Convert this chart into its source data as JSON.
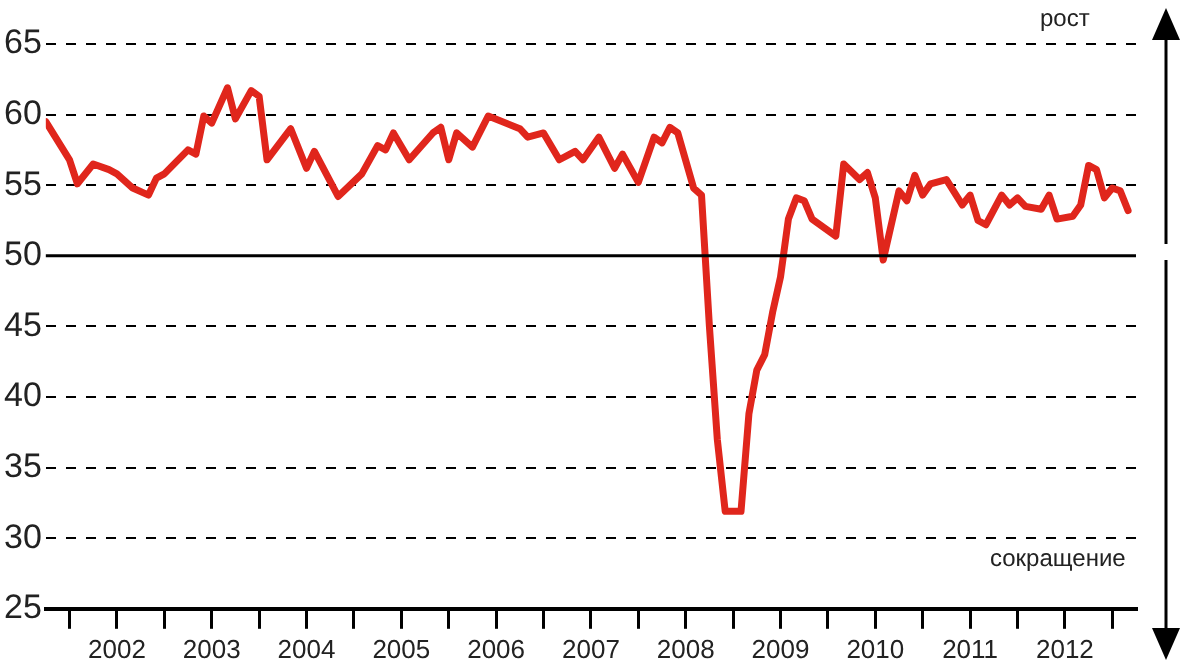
{
  "chart_data": {
    "type": "line",
    "x": [
      "2001-10",
      "2001-12",
      "2002-01",
      "2002-02",
      "2002-04",
      "2002-06",
      "2002-07",
      "2002-09",
      "2002-11",
      "2002-12",
      "2003-01",
      "2003-04",
      "2003-05",
      "2003-06",
      "2003-07",
      "2003-09",
      "2003-10",
      "2003-12",
      "2004-01",
      "2004-02",
      "2004-05",
      "2004-07",
      "2004-08",
      "2004-11",
      "2005-02",
      "2005-04",
      "2005-05",
      "2005-06",
      "2005-08",
      "2005-11",
      "2005-12",
      "2006-01",
      "2006-02",
      "2006-04",
      "2006-06",
      "2006-10",
      "2006-11",
      "2007-01",
      "2007-03",
      "2007-05",
      "2007-06",
      "2007-08",
      "2007-10",
      "2007-11",
      "2008-01",
      "2008-03",
      "2008-04",
      "2008-05",
      "2008-06",
      "2008-08",
      "2008-09",
      "2008-10",
      "2008-11",
      "2008-12",
      "2009-02",
      "2009-03",
      "2009-04",
      "2009-05",
      "2009-06",
      "2009-07",
      "2009-08",
      "2009-09",
      "2009-10",
      "2009-11",
      "2010-02",
      "2010-03",
      "2010-05",
      "2010-06",
      "2010-07",
      "2010-08",
      "2010-10",
      "2010-11",
      "2010-12",
      "2011-01",
      "2011-02",
      "2011-04",
      "2011-06",
      "2011-07",
      "2011-08",
      "2011-09",
      "2011-11",
      "2011-12",
      "2012-01",
      "2012-02",
      "2012-04",
      "2012-05",
      "2012-06",
      "2012-08",
      "2012-09",
      "2012-10",
      "2012-11",
      "2012-12",
      "2013-01",
      "2013-02",
      "2013-03"
    ],
    "series": [
      {
        "color": "#e0261c",
        "values": [
          59.5,
          57.7,
          56.8,
          55.1,
          56.5,
          56.1,
          55.8,
          54.8,
          54.3,
          55.5,
          55.8,
          57.5,
          57.2,
          59.9,
          59.4,
          61.9,
          59.7,
          61.7,
          61.3,
          56.8,
          59,
          56.2,
          57.4,
          54.2,
          55.8,
          57.8,
          57.5,
          58.7,
          56.8,
          58.7,
          59.1,
          56.8,
          58.7,
          57.7,
          59.9,
          59,
          58.4,
          58.7,
          56.8,
          57.4,
          56.8,
          58.4,
          56.2,
          57.2,
          55.2,
          58.4,
          58,
          59.1,
          58.7,
          54.8,
          54.3,
          45,
          37,
          31.9,
          31.9,
          38.8,
          41.9,
          43,
          46,
          48.5,
          52.6,
          54.1,
          53.9,
          52.6,
          51.4,
          56.5,
          55.4,
          55.9,
          54.1,
          49.7,
          54.6,
          53.9,
          55.7,
          54.3,
          55.1,
          55.4,
          53.6,
          54.3,
          52.5,
          52.2,
          54.3,
          53.6,
          54.1,
          53.5,
          53.3,
          54.3,
          52.6,
          52.8,
          53.6,
          56.4,
          56.1,
          54.1,
          54.8,
          54.6,
          53.2
        ]
      }
    ],
    "xlim": [
      "2001-10",
      "2013-04"
    ],
    "xticks": [
      {
        "value": "2002-01",
        "label": null
      },
      {
        "value": "2002-07",
        "label": "2002"
      },
      {
        "value": "2003-01",
        "label": null
      },
      {
        "value": "2003-07",
        "label": "2003"
      },
      {
        "value": "2004-01",
        "label": null
      },
      {
        "value": "2004-07",
        "label": "2004"
      },
      {
        "value": "2005-01",
        "label": null
      },
      {
        "value": "2005-07",
        "label": "2005"
      },
      {
        "value": "2006-01",
        "label": null
      },
      {
        "value": "2006-07",
        "label": "2006"
      },
      {
        "value": "2007-01",
        "label": null
      },
      {
        "value": "2007-07",
        "label": "2007"
      },
      {
        "value": "2008-01",
        "label": null
      },
      {
        "value": "2008-07",
        "label": "2008"
      },
      {
        "value": "2009-01",
        "label": null
      },
      {
        "value": "2009-07",
        "label": "2009"
      },
      {
        "value": "2010-01",
        "label": null
      },
      {
        "value": "2010-07",
        "label": "2010"
      },
      {
        "value": "2011-01",
        "label": null
      },
      {
        "value": "2011-07",
        "label": "2011"
      },
      {
        "value": "2012-01",
        "label": null
      },
      {
        "value": "2012-07",
        "label": "2012"
      },
      {
        "value": "2013-01",
        "label": null
      }
    ],
    "ylim": [
      25,
      65
    ],
    "yticks": [
      25,
      30,
      35,
      40,
      45,
      50,
      55,
      60,
      65
    ],
    "grid": "y",
    "line_style": "solid",
    "marker": "none",
    "ref_lines": [
      {
        "axis": "y",
        "value": 50,
        "color": "#000000",
        "line_style": "solid"
      }
    ],
    "annotations": [
      "рост",
      "сокращение"
    ]
  }
}
